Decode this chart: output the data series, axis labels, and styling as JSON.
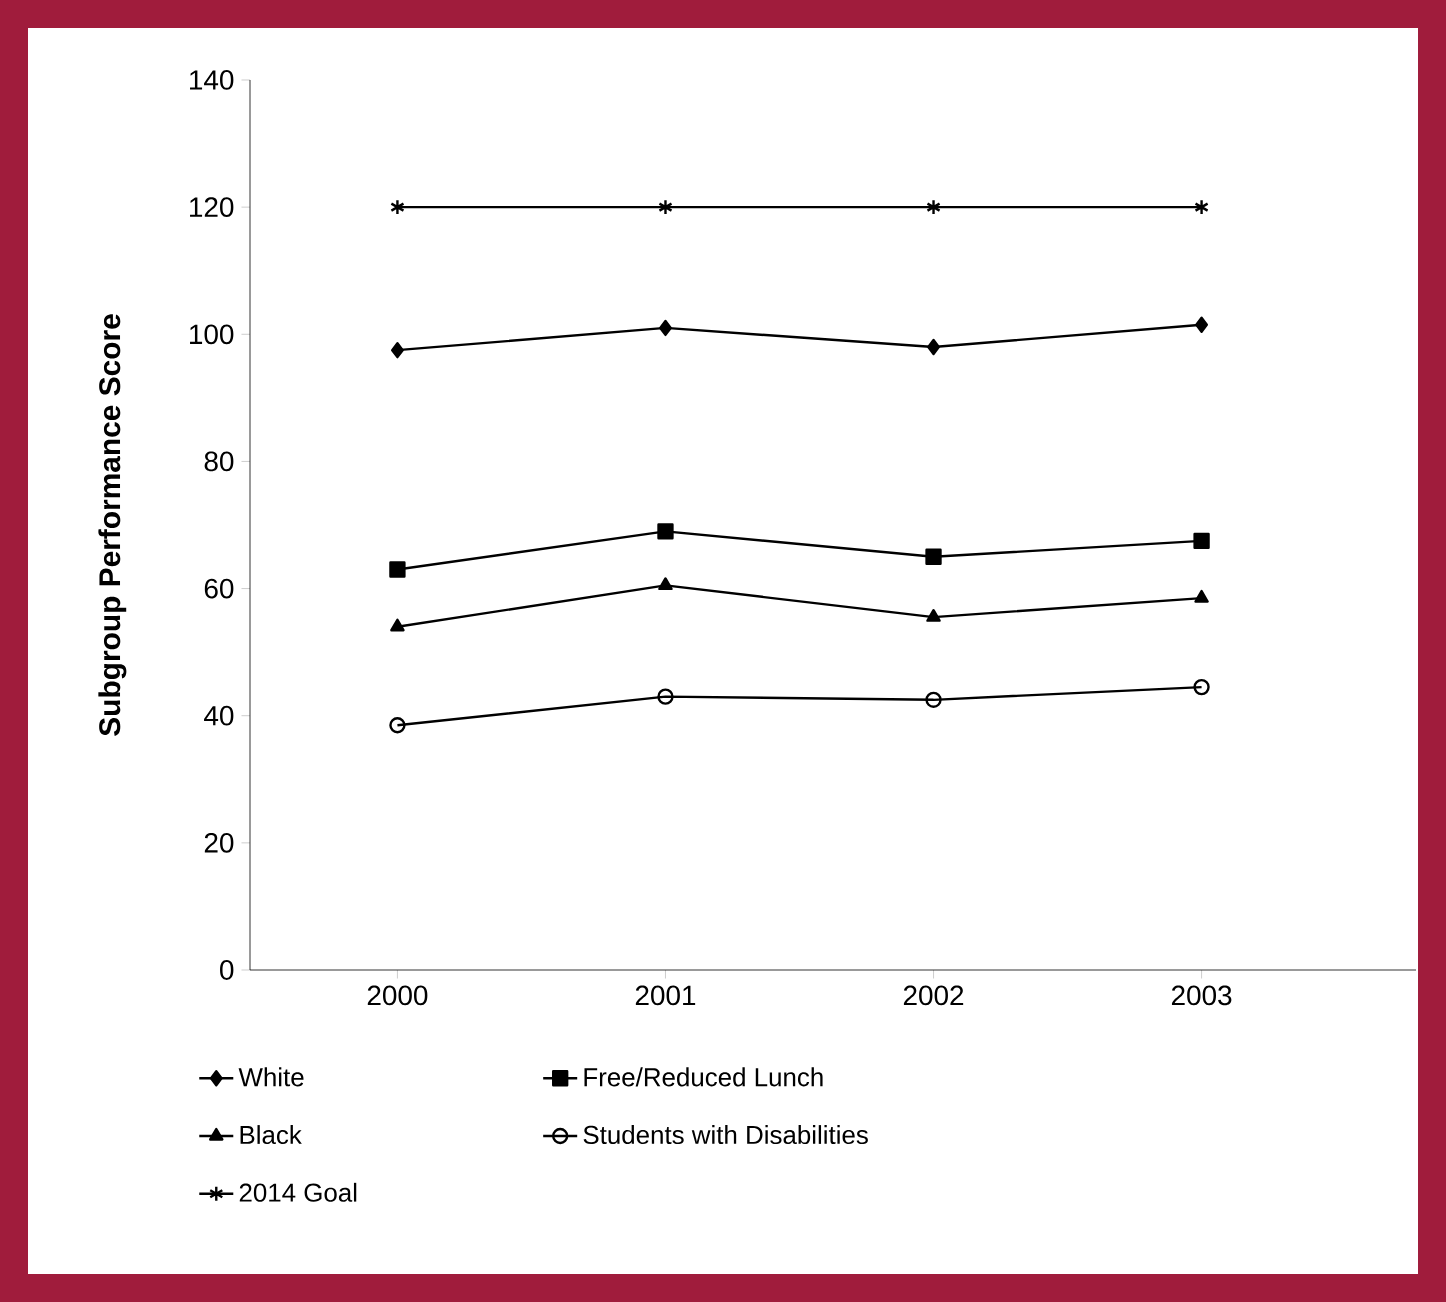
{
  "chart_data": {
    "type": "line",
    "ylabel": "Subgroup Performance Score",
    "categories": [
      "2000",
      "2001",
      "2002",
      "2003"
    ],
    "series": [
      {
        "name": "White",
        "color": "#000000",
        "marker": "diamond",
        "values": [
          97.5,
          101,
          98,
          101.5
        ]
      },
      {
        "name": "Free/Reduced Lunch",
        "color": "#000000",
        "marker": "square",
        "values": [
          63,
          69,
          65,
          67.5
        ]
      },
      {
        "name": "Black",
        "color": "#000000",
        "marker": "triangle",
        "values": [
          54,
          60.5,
          55.5,
          58.5
        ]
      },
      {
        "name": "Students with Disabilities",
        "color": "#000000",
        "marker": "circle",
        "values": [
          38.5,
          43,
          42.5,
          44.5
        ]
      },
      {
        "name": "2014 Goal",
        "color": "#000000",
        "marker": "cross",
        "values": [
          120,
          120,
          120,
          120
        ]
      }
    ],
    "ylim": [
      0,
      140
    ],
    "yticks": [
      0,
      20,
      40,
      60,
      80,
      100,
      120,
      140
    ],
    "grid": false,
    "legend": "bottom",
    "line_style": "solid"
  }
}
